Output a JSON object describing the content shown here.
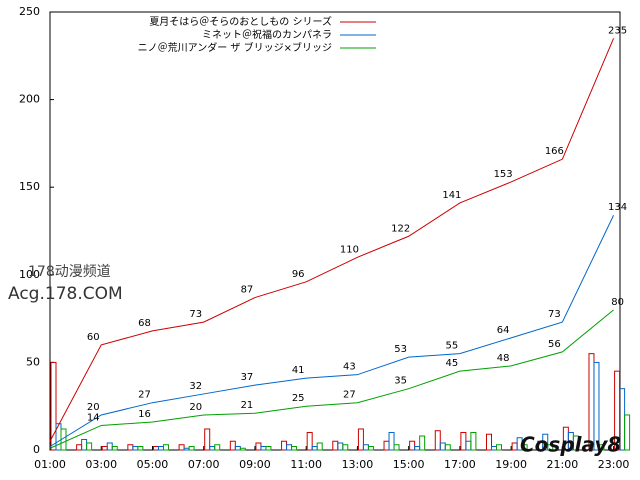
{
  "chart_data": {
    "type": "line",
    "x": [
      1,
      3,
      5,
      7,
      9,
      11,
      13,
      15,
      17,
      19,
      21,
      23
    ],
    "series": [
      {
        "name": "夏月そはら＠そらのおとしもの シリーズ",
        "color": "#cc0000",
        "values": [
          5,
          60,
          68,
          73,
          87,
          96,
          110,
          122,
          141,
          153,
          166,
          235
        ]
      },
      {
        "name": "ミネット＠祝福のカンパネラ",
        "color": "#0066cc",
        "values": [
          2,
          20,
          27,
          32,
          37,
          41,
          43,
          53,
          55,
          64,
          73,
          134
        ]
      },
      {
        "name": "ニノ＠荒川アンダー ザ ブリッジ×ブリッジ",
        "color": "#00a000",
        "values": [
          1,
          14,
          16,
          20,
          21,
          25,
          27,
          35,
          45,
          48,
          56,
          80
        ]
      }
    ],
    "bar_x": [
      1,
      2,
      3,
      4,
      5,
      6,
      7,
      8,
      9,
      10,
      11,
      12,
      13,
      14,
      15,
      16,
      17,
      18,
      19,
      20,
      21,
      22,
      23
    ],
    "bar_series": [
      {
        "color": "#cc0000",
        "values": [
          50,
          3,
          2,
          3,
          2,
          3,
          12,
          5,
          4,
          5,
          10,
          5,
          12,
          5,
          5,
          11,
          10,
          9,
          4,
          5,
          13,
          55,
          45
        ]
      },
      {
        "color": "#0066cc",
        "values": [
          15,
          6,
          4,
          2,
          2,
          1,
          2,
          2,
          2,
          3,
          2,
          4,
          3,
          10,
          2,
          4,
          5,
          2,
          7,
          9,
          10,
          50,
          35
        ]
      },
      {
        "color": "#00a000",
        "values": [
          12,
          4,
          2,
          2,
          3,
          2,
          3,
          1,
          2,
          2,
          4,
          3,
          2,
          3,
          8,
          3,
          10,
          3,
          3,
          3,
          8,
          3,
          20
        ]
      }
    ],
    "xlim": [
      1,
      23.25
    ],
    "ylim": [
      0,
      250
    ],
    "xticks": [
      {
        "value": 1,
        "label": "01:00"
      },
      {
        "value": 3,
        "label": "03:00"
      },
      {
        "value": 5,
        "label": "05:00"
      },
      {
        "value": 7,
        "label": "07:00"
      },
      {
        "value": 9,
        "label": "09:00"
      },
      {
        "value": 11,
        "label": "11:00"
      },
      {
        "value": 13,
        "label": "13:00"
      },
      {
        "value": 15,
        "label": "15:00"
      },
      {
        "value": 17,
        "label": "17:00"
      },
      {
        "value": 19,
        "label": "19:00"
      },
      {
        "value": 21,
        "label": "21:00"
      },
      {
        "value": 23,
        "label": "23:00"
      }
    ],
    "yticks": [
      0,
      50,
      100,
      150,
      200,
      250
    ],
    "legend": "top-right",
    "watermarks": [
      "178动漫频道",
      "Acg.178.COM",
      "Cosplay8"
    ]
  }
}
